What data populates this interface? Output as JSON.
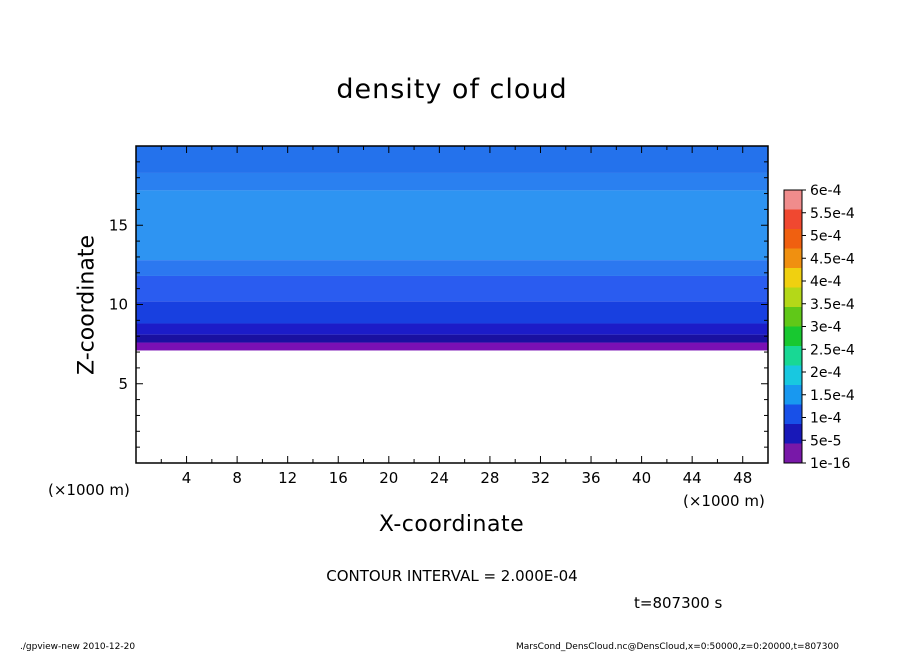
{
  "chart_data": {
    "type": "heatmap",
    "title": "density of cloud",
    "xlabel": "X-coordinate",
    "ylabel": "Z-coordinate",
    "x_unit_left": "(×1000 m)",
    "x_unit_right": "(×1000 m)",
    "xlim": [
      0,
      50
    ],
    "ylim": [
      0,
      20
    ],
    "x_ticks": [
      4,
      8,
      12,
      16,
      20,
      24,
      28,
      32,
      36,
      40,
      44,
      48
    ],
    "x_ticklabels": [
      "4",
      "8",
      "12",
      "16",
      "20",
      "24",
      "28",
      "32",
      "36",
      "40",
      "44",
      "48"
    ],
    "y_ticks": [
      5,
      10,
      15
    ],
    "y_ticklabels": [
      "5",
      "10",
      "15"
    ],
    "cloud_bands": [
      {
        "z_bottom": 7.1,
        "z_top": 7.6,
        "color": "#7a10b4"
      },
      {
        "z_bottom": 7.6,
        "z_top": 8.1,
        "color": "#1a10a0"
      },
      {
        "z_bottom": 8.1,
        "z_top": 8.8,
        "color": "#1c1cc8"
      },
      {
        "z_bottom": 8.8,
        "z_top": 10.2,
        "color": "#1840e0"
      },
      {
        "z_bottom": 10.2,
        "z_top": 11.8,
        "color": "#2a5cf0"
      },
      {
        "z_bottom": 11.8,
        "z_top": 12.8,
        "color": "#2c78f0"
      },
      {
        "z_bottom": 12.8,
        "z_top": 17.2,
        "color": "#2e94f2"
      },
      {
        "z_bottom": 17.2,
        "z_top": 18.3,
        "color": "#2a80f0"
      },
      {
        "z_bottom": 18.3,
        "z_top": 20.0,
        "color": "#2472ec"
      }
    ],
    "colorbar": {
      "labels": [
        "6e-4",
        "5.5e-4",
        "5e-4",
        "4.5e-4",
        "4e-4",
        "3.5e-4",
        "3e-4",
        "2.5e-4",
        "2e-4",
        "1.5e-4",
        "1e-4",
        "5e-5",
        "1e-16"
      ],
      "colors": [
        "#f08c8c",
        "#f04830",
        "#f06010",
        "#f09010",
        "#f0d010",
        "#b4d818",
        "#60c818",
        "#18c830",
        "#18d894",
        "#18c8e0",
        "#1898f0",
        "#1850e8",
        "#1818b8",
        "#7818a8"
      ]
    },
    "contour_interval": "CONTOUR INTERVAL = 2.000E-04",
    "time": "t=807300 s"
  },
  "footer": {
    "left": "./gpview-new   2010-12-20",
    "right": "MarsCond_DensCloud.nc@DensCloud,x=0:50000,z=0:20000,t=807300"
  }
}
